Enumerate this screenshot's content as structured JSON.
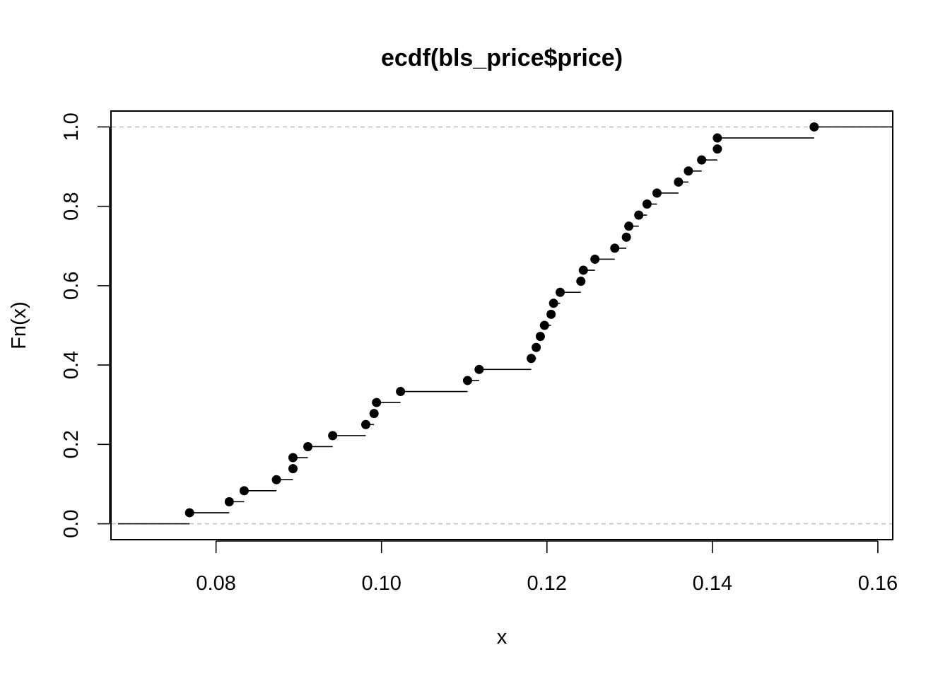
{
  "chart_data": {
    "type": "ecdf",
    "title": "ecdf(bls_price$price)",
    "xlabel": "x",
    "ylabel": "Fn(x)",
    "xlim": [
      0.0673,
      0.1618
    ],
    "ylim": [
      -0.04,
      1.04
    ],
    "x_ticks": [
      {
        "value": 0.08,
        "label": "0.08"
      },
      {
        "value": 0.1,
        "label": "0.10"
      },
      {
        "value": 0.12,
        "label": "0.12"
      },
      {
        "value": 0.14,
        "label": "0.14"
      },
      {
        "value": 0.16,
        "label": "0.16"
      }
    ],
    "y_ticks": [
      {
        "value": 0.0,
        "label": "0.0"
      },
      {
        "value": 0.2,
        "label": "0.2"
      },
      {
        "value": 0.4,
        "label": "0.4"
      },
      {
        "value": 0.6,
        "label": "0.6"
      },
      {
        "value": 0.8,
        "label": "0.8"
      },
      {
        "value": 1.0,
        "label": "1.0"
      }
    ],
    "reference_lines": [
      0,
      1
    ],
    "reference_line_color": "#bebebe",
    "point_color": "#000000",
    "n": 36,
    "points": [
      {
        "x": 0.0768,
        "y": 0.0278
      },
      {
        "x": 0.0816,
        "y": 0.0556
      },
      {
        "x": 0.0834,
        "y": 0.0833
      },
      {
        "x": 0.0873,
        "y": 0.1111
      },
      {
        "x": 0.0893,
        "y": 0.1389
      },
      {
        "x": 0.0893,
        "y": 0.1667
      },
      {
        "x": 0.0911,
        "y": 0.1944
      },
      {
        "x": 0.0941,
        "y": 0.2222
      },
      {
        "x": 0.0981,
        "y": 0.25
      },
      {
        "x": 0.0991,
        "y": 0.2778
      },
      {
        "x": 0.0994,
        "y": 0.3056
      },
      {
        "x": 0.1023,
        "y": 0.3333
      },
      {
        "x": 0.1104,
        "y": 0.3611
      },
      {
        "x": 0.1118,
        "y": 0.3889
      },
      {
        "x": 0.1181,
        "y": 0.4167
      },
      {
        "x": 0.1187,
        "y": 0.4444
      },
      {
        "x": 0.1192,
        "y": 0.4722
      },
      {
        "x": 0.1197,
        "y": 0.5
      },
      {
        "x": 0.1205,
        "y": 0.5278
      },
      {
        "x": 0.1208,
        "y": 0.5556
      },
      {
        "x": 0.1216,
        "y": 0.5833
      },
      {
        "x": 0.1241,
        "y": 0.6111
      },
      {
        "x": 0.1244,
        "y": 0.6389
      },
      {
        "x": 0.1258,
        "y": 0.6667
      },
      {
        "x": 0.1282,
        "y": 0.6944
      },
      {
        "x": 0.1296,
        "y": 0.7222
      },
      {
        "x": 0.1299,
        "y": 0.75
      },
      {
        "x": 0.1311,
        "y": 0.7778
      },
      {
        "x": 0.1321,
        "y": 0.8056
      },
      {
        "x": 0.1333,
        "y": 0.8333
      },
      {
        "x": 0.1359,
        "y": 0.8611
      },
      {
        "x": 0.1371,
        "y": 0.8889
      },
      {
        "x": 0.1387,
        "y": 0.9167
      },
      {
        "x": 0.1406,
        "y": 0.9444
      },
      {
        "x": 0.1406,
        "y": 0.9722
      },
      {
        "x": 0.1523,
        "y": 1.0
      }
    ]
  }
}
